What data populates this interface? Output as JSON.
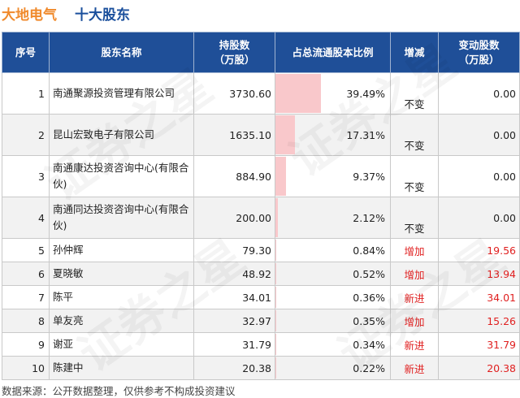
{
  "header": {
    "company": "大地电气",
    "title": "十大股东"
  },
  "table": {
    "columns": [
      "序号",
      "股东名称",
      "持股数\n（万股）",
      "占总流通股本比例",
      "增减",
      "变动股数\n（万股）"
    ],
    "rows": [
      {
        "idx": "1",
        "name": "南通聚源投资管理有限公司",
        "shares": "3730.60",
        "pct": "39.49%",
        "pct_value": 39.49,
        "change": "不变",
        "amount": "0.00",
        "up": false
      },
      {
        "idx": "2",
        "name": "昆山宏致电子有限公司",
        "shares": "1635.10",
        "pct": "17.31%",
        "pct_value": 17.31,
        "change": "不变",
        "amount": "0.00",
        "up": false
      },
      {
        "idx": "3",
        "name": "南通康达投资咨询中心(有限合伙)",
        "shares": "884.90",
        "pct": "9.37%",
        "pct_value": 9.37,
        "change": "不变",
        "amount": "0.00",
        "up": false
      },
      {
        "idx": "4",
        "name": "南通同达投资咨询中心(有限合伙)",
        "shares": "200.00",
        "pct": "2.12%",
        "pct_value": 2.12,
        "change": "不变",
        "amount": "0.00",
        "up": false
      },
      {
        "idx": "5",
        "name": "孙仲辉",
        "shares": "79.30",
        "pct": "0.84%",
        "pct_value": 0.84,
        "change": "增加",
        "amount": "19.56",
        "up": true
      },
      {
        "idx": "6",
        "name": "夏晓敏",
        "shares": "48.92",
        "pct": "0.52%",
        "pct_value": 0.52,
        "change": "增加",
        "amount": "13.94",
        "up": true
      },
      {
        "idx": "7",
        "name": "陈平",
        "shares": "34.01",
        "pct": "0.36%",
        "pct_value": 0.36,
        "change": "新进",
        "amount": "34.01",
        "up": true
      },
      {
        "idx": "8",
        "name": "单友亮",
        "shares": "32.97",
        "pct": "0.35%",
        "pct_value": 0.35,
        "change": "增加",
        "amount": "15.26",
        "up": true
      },
      {
        "idx": "9",
        "name": "谢亚",
        "shares": "31.79",
        "pct": "0.34%",
        "pct_value": 0.34,
        "change": "新进",
        "amount": "31.79",
        "up": true
      },
      {
        "idx": "10",
        "name": "陈建中",
        "shares": "20.38",
        "pct": "0.22%",
        "pct_value": 0.22,
        "change": "新进",
        "amount": "20.38",
        "up": true
      }
    ]
  },
  "colors": {
    "header_bg": "#1f4f98",
    "bar": "#f9c8cb",
    "up_text": "#e02020",
    "company": "#f08a2c",
    "title": "#1a4f9c"
  },
  "watermark": "证券之星",
  "footer": "数据来源：公开数据整理，仅供参考不构成投资建议"
}
